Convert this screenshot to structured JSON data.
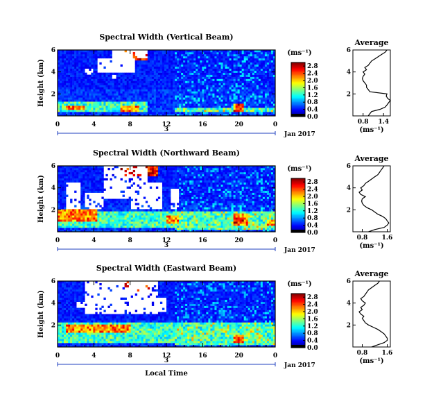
{
  "chart_data": [
    {
      "type": "heatmap",
      "title": "Spectral Width (Vertical Beam)",
      "ylabel": "Height (km)",
      "xticks": [
        "0",
        "4",
        "8",
        "12",
        "16",
        "20",
        "0"
      ],
      "yticks": [
        "2",
        "4",
        "6"
      ],
      "ylim": [
        0,
        6
      ],
      "xlim": [
        0,
        24
      ],
      "date_label": "3",
      "month_label": "Jan 2017",
      "colorbar": {
        "unit": "(ms⁻¹)",
        "ticks": [
          "2.8",
          "2.4",
          "2.0",
          "1.6",
          "1.2",
          "0.8",
          "0.4",
          "0.0"
        ],
        "range": [
          0,
          3.0
        ]
      },
      "regions": {
        "missing": [
          [
            6,
            5.2,
            10,
            6
          ],
          [
            4.5,
            4.0,
            8.5,
            5.2
          ],
          [
            3,
            3.8,
            4,
            4.4
          ],
          [
            6,
            3.4,
            6.5,
            3.8
          ]
        ],
        "high": [
          [
            7,
            5.0,
            10,
            6
          ]
        ],
        "elevated": [
          [
            0,
            0.3,
            10,
            1.3
          ],
          [
            13,
            0.3,
            24,
            0.8
          ]
        ],
        "hotspots": [
          [
            1,
            0.5,
            3,
            1
          ],
          [
            19.5,
            0.4,
            20.5,
            1.2
          ],
          [
            7,
            0.4,
            9,
            0.9
          ]
        ]
      },
      "average": {
        "title": "Average",
        "unit_label": "(ms⁻¹)",
        "xticks": [
          "0.8",
          "1.4"
        ],
        "xlim": [
          0.5,
          1.6
        ],
        "yticks": [
          "2",
          "4",
          "6"
        ],
        "ylim": [
          0,
          6
        ],
        "height": [
          0.0,
          0.2,
          0.4,
          0.6,
          0.8,
          1.0,
          1.2,
          1.4,
          1.6,
          1.8,
          2.0,
          2.2,
          2.4,
          2.6,
          2.8,
          3.0,
          3.2,
          3.4,
          3.6,
          3.8,
          4.0,
          4.2,
          4.4,
          4.6,
          4.8,
          5.0,
          5.2,
          5.4,
          5.6,
          5.8,
          6.0
        ],
        "value": [
          0.95,
          1.0,
          1.05,
          1.3,
          1.45,
          1.5,
          1.55,
          1.6,
          1.52,
          1.48,
          1.5,
          1.0,
          0.95,
          0.9,
          0.9,
          0.85,
          0.8,
          0.78,
          0.8,
          0.85,
          0.8,
          0.9,
          0.85,
          0.95,
          1.0,
          1.05,
          1.15,
          1.25,
          1.35,
          1.45,
          1.5
        ]
      }
    },
    {
      "type": "heatmap",
      "title": "Spectral Width (Northward Beam)",
      "ylabel": "Height (km)",
      "xticks": [
        "0",
        "4",
        "8",
        "12",
        "16",
        "20",
        "0"
      ],
      "yticks": [
        "2",
        "4",
        "6"
      ],
      "ylim": [
        0,
        6
      ],
      "xlim": [
        0,
        24
      ],
      "date_label": "3",
      "month_label": "Jan 2017",
      "colorbar": {
        "unit": "(ms⁻¹)",
        "ticks": [
          "2.8",
          "2.4",
          "2.0",
          "1.6",
          "1.2",
          "0.8",
          "0.4",
          "0.0"
        ],
        "range": [
          0,
          3.0
        ]
      },
      "regions": {
        "missing": [
          [
            5,
            3.0,
            10,
            6
          ],
          [
            1,
            2.0,
            2.5,
            4.5
          ],
          [
            3,
            2.0,
            5,
            3.5
          ],
          [
            8,
            2.0,
            11.5,
            4.5
          ],
          [
            12.5,
            2.0,
            13.5,
            4.0
          ]
        ],
        "high": [
          [
            7,
            5.0,
            11,
            6
          ]
        ],
        "elevated": [
          [
            0,
            0.3,
            24,
            1.8
          ],
          [
            13,
            0.2,
            24,
            1.2
          ]
        ],
        "hotspots": [
          [
            0,
            1.0,
            4.5,
            2.0
          ],
          [
            12,
            0.8,
            13.5,
            1.5
          ],
          [
            19.5,
            0.6,
            21,
            1.6
          ],
          [
            23,
            0.6,
            24,
            1.2
          ]
        ]
      },
      "average": {
        "title": "Average",
        "unit_label": "(ms⁻¹)",
        "xticks": [
          "0.8",
          "1.6"
        ],
        "xlim": [
          0.5,
          1.7
        ],
        "yticks": [
          "2",
          "4",
          "6"
        ],
        "ylim": [
          0,
          6
        ],
        "height": [
          0.0,
          0.2,
          0.4,
          0.6,
          0.8,
          1.0,
          1.2,
          1.4,
          1.6,
          1.8,
          2.0,
          2.2,
          2.4,
          2.6,
          2.8,
          3.0,
          3.2,
          3.4,
          3.6,
          3.8,
          4.0,
          4.2,
          4.4,
          4.6,
          4.8,
          5.0,
          5.2,
          5.4,
          5.6,
          5.8,
          6.0
        ],
        "value": [
          1.0,
          1.2,
          1.5,
          1.6,
          1.65,
          1.6,
          1.55,
          1.45,
          1.3,
          1.2,
          1.1,
          0.95,
          0.85,
          0.8,
          0.78,
          0.8,
          0.9,
          0.75,
          0.7,
          0.8,
          0.75,
          0.85,
          0.9,
          1.0,
          1.1,
          1.2,
          1.3,
          1.35,
          1.4,
          1.45,
          1.5
        ]
      }
    },
    {
      "type": "heatmap",
      "title": "Spectral Width (Eastward Beam)",
      "ylabel": "Height (km)",
      "xticks": [
        "0",
        "4",
        "8",
        "12",
        "16",
        "20",
        "0"
      ],
      "yticks": [
        "2",
        "4",
        "6"
      ],
      "ylim": [
        0,
        6
      ],
      "xlim": [
        0,
        24
      ],
      "date_label": "3",
      "month_label": "Jan 2017",
      "xlabel": "Local Time",
      "colorbar": {
        "unit": "(ms⁻¹)",
        "ticks": [
          "2.8",
          "2.4",
          "2.0",
          "1.6",
          "1.2",
          "0.8",
          "0.4",
          "0.0"
        ],
        "range": [
          0,
          3.0
        ]
      },
      "regions": {
        "missing": [
          [
            3,
            3.0,
            11,
            6
          ],
          [
            2,
            3.5,
            3.5,
            4.2
          ],
          [
            11,
            3.2,
            12,
            4.5
          ]
        ],
        "high": [
          [
            7.5,
            5.0,
            10.5,
            6
          ],
          [
            7,
            5.5,
            7.5,
            6
          ]
        ],
        "elevated": [
          [
            0,
            0.3,
            24,
            2.2
          ],
          [
            13,
            0.2,
            24,
            1.5
          ]
        ],
        "hotspots": [
          [
            1,
            1.4,
            8,
            2.0
          ],
          [
            19.5,
            0.4,
            20.5,
            1.2
          ],
          [
            3,
            1.5,
            5,
            2.0
          ]
        ]
      },
      "average": {
        "title": "Average",
        "unit_label": "(ms⁻¹)",
        "xticks": [
          "0.8",
          "1.6"
        ],
        "xlim": [
          0.5,
          1.7
        ],
        "yticks": [
          "2",
          "4",
          "6"
        ],
        "ylim": [
          0,
          6
        ],
        "height": [
          0.0,
          0.2,
          0.4,
          0.6,
          0.8,
          1.0,
          1.2,
          1.4,
          1.6,
          1.8,
          2.0,
          2.2,
          2.4,
          2.6,
          2.8,
          3.0,
          3.2,
          3.4,
          3.6,
          3.8,
          4.0,
          4.2,
          4.4,
          4.6,
          4.8,
          5.0,
          5.2,
          5.4,
          5.6,
          5.8,
          6.0
        ],
        "value": [
          1.1,
          1.3,
          1.5,
          1.6,
          1.6,
          1.55,
          1.5,
          1.4,
          1.3,
          1.15,
          1.0,
          0.9,
          0.85,
          0.8,
          0.85,
          0.75,
          0.7,
          0.8,
          0.75,
          0.85,
          0.9,
          0.8,
          0.75,
          0.85,
          0.9,
          0.95,
          1.0,
          1.1,
          1.2,
          1.3,
          1.35
        ]
      }
    }
  ]
}
